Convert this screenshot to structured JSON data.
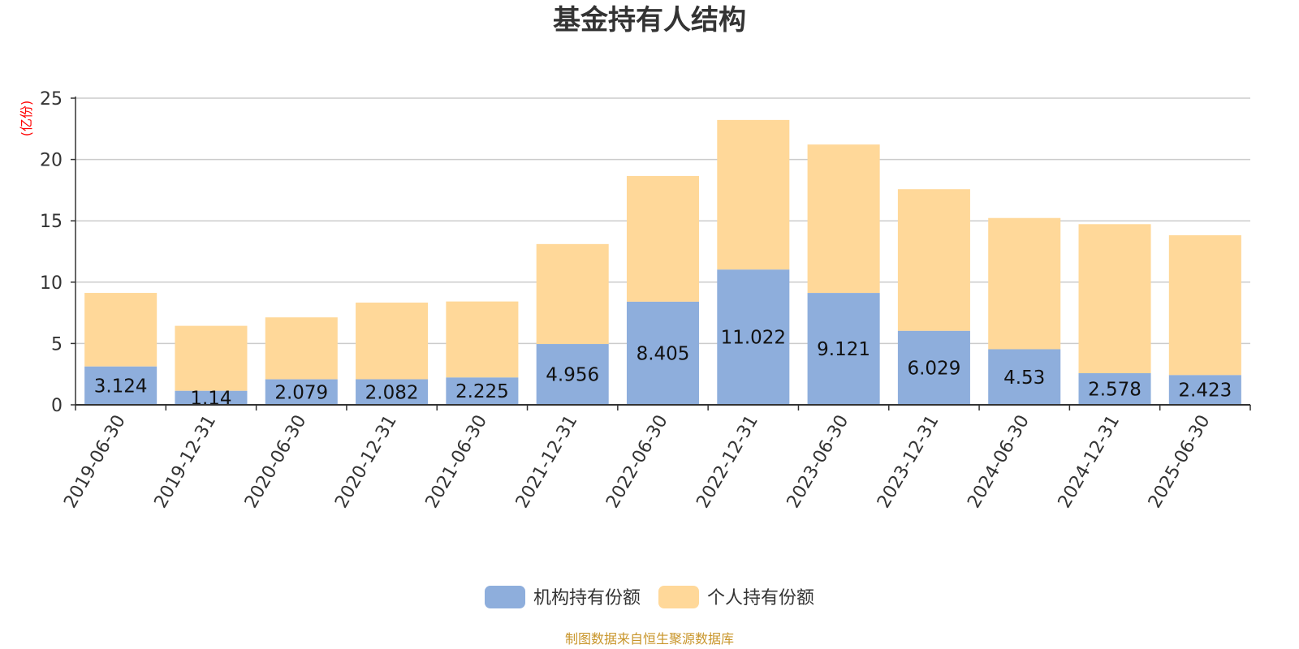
{
  "chart_data": {
    "type": "bar",
    "stacked": true,
    "title": "基金持有人结构",
    "unit_label": "(亿份)",
    "categories": [
      "2019-06-30",
      "2019-12-31",
      "2020-06-30",
      "2020-12-31",
      "2021-06-30",
      "2021-12-31",
      "2022-06-30",
      "2022-12-31",
      "2023-06-30",
      "2023-12-31",
      "2024-06-30",
      "2024-12-31",
      "2025-06-30"
    ],
    "series": [
      {
        "name": "机构持有份额",
        "color": "#8eaedc",
        "values": [
          3.124,
          1.14,
          2.079,
          2.082,
          2.225,
          4.956,
          8.405,
          11.022,
          9.121,
          6.029,
          4.53,
          2.578,
          2.423
        ]
      },
      {
        "name": "个人持有份额",
        "color": "#ffd899",
        "values": [
          6.0,
          5.3,
          5.05,
          6.25,
          6.2,
          8.15,
          10.25,
          12.2,
          12.1,
          11.55,
          10.7,
          12.15,
          11.4
        ]
      }
    ],
    "data_labels_series": "机构持有份额",
    "ylim": [
      0,
      25
    ],
    "yticks": [
      0,
      5,
      10,
      15,
      20,
      25
    ],
    "grid": true,
    "legend_position": "bottom-center"
  },
  "source_note": "制图数据来自恒生聚源数据库"
}
